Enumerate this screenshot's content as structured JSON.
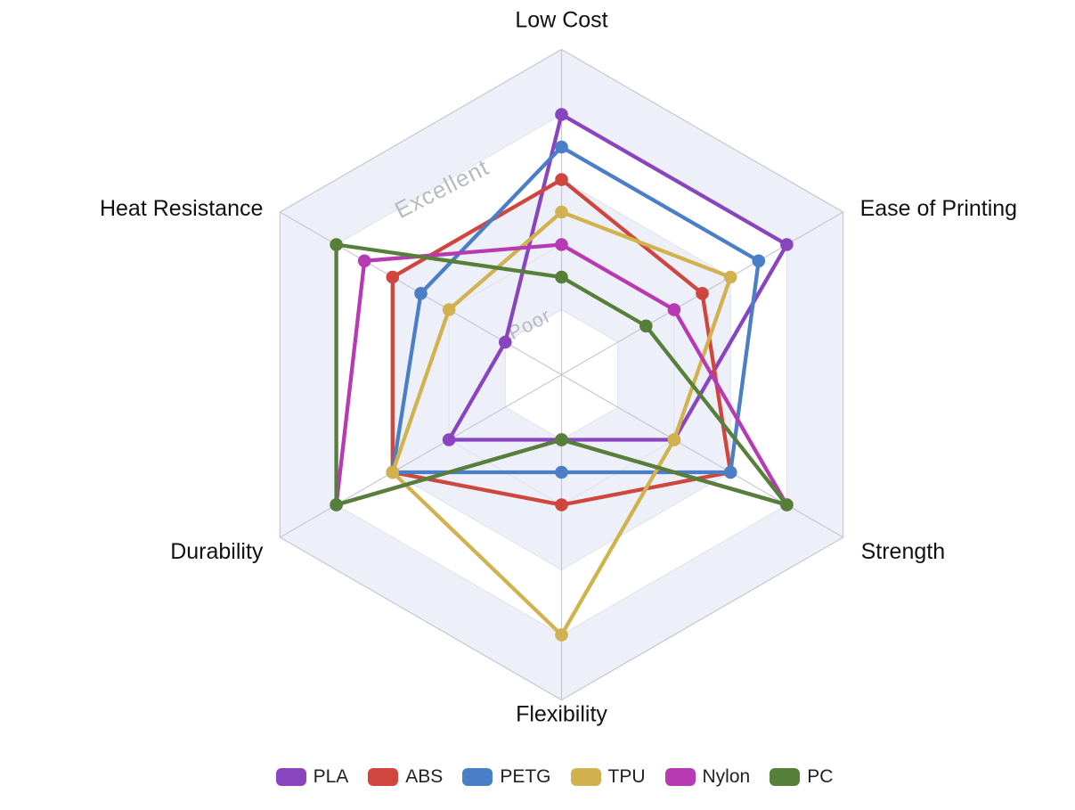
{
  "chart_data": {
    "type": "radar",
    "title": "",
    "categories": [
      "Low Cost",
      "Ease of Printing",
      "Strength",
      "Flexibility",
      "Durability",
      "Heat Resistance"
    ],
    "angles_deg": [
      90,
      30,
      -30,
      -90,
      210,
      150
    ],
    "scale": {
      "min": 0,
      "max": 10,
      "ring_step": 2,
      "ticks": [
        2,
        4,
        6,
        8,
        10
      ]
    },
    "ring_labels": [
      {
        "text": "Poor",
        "value": 2,
        "font_px": 22
      },
      {
        "text": "Excellent",
        "value": 8,
        "font_px": 26
      }
    ],
    "ring_label_layout": {
      "angle_deg": 123,
      "radius_factor": 0.82,
      "rotation_deg": -27
    },
    "series": [
      {
        "name": "PLA",
        "color": "#8945be",
        "values": [
          8,
          8,
          4,
          2,
          4,
          2
        ]
      },
      {
        "name": "ABS",
        "color": "#ce463d",
        "values": [
          6,
          5,
          6,
          4,
          6,
          6
        ]
      },
      {
        "name": "PETG",
        "color": "#4a7ec6",
        "values": [
          7,
          7,
          6,
          3,
          6,
          5
        ]
      },
      {
        "name": "TPU",
        "color": "#d1b24f",
        "values": [
          5,
          6,
          4,
          8,
          6,
          4
        ]
      },
      {
        "name": "Nylon",
        "color": "#b83ab3",
        "values": [
          4,
          4,
          8,
          2,
          8,
          7
        ]
      },
      {
        "name": "PC",
        "color": "#567f39",
        "values": [
          3,
          3,
          8,
          2,
          8,
          8
        ]
      }
    ],
    "legend_position": "bottom",
    "grid": {
      "band_light": "#edf0f8",
      "band_white": "#ffffff",
      "bands": [
        {
          "to": 10,
          "shade": "light"
        },
        {
          "to": 8,
          "shade": "white"
        },
        {
          "to": 6,
          "shade": "light"
        },
        {
          "to": 2,
          "shade": "white"
        }
      ],
      "ring_color": "#dfe2ec",
      "spoke_color": "#c6c9d2"
    }
  }
}
